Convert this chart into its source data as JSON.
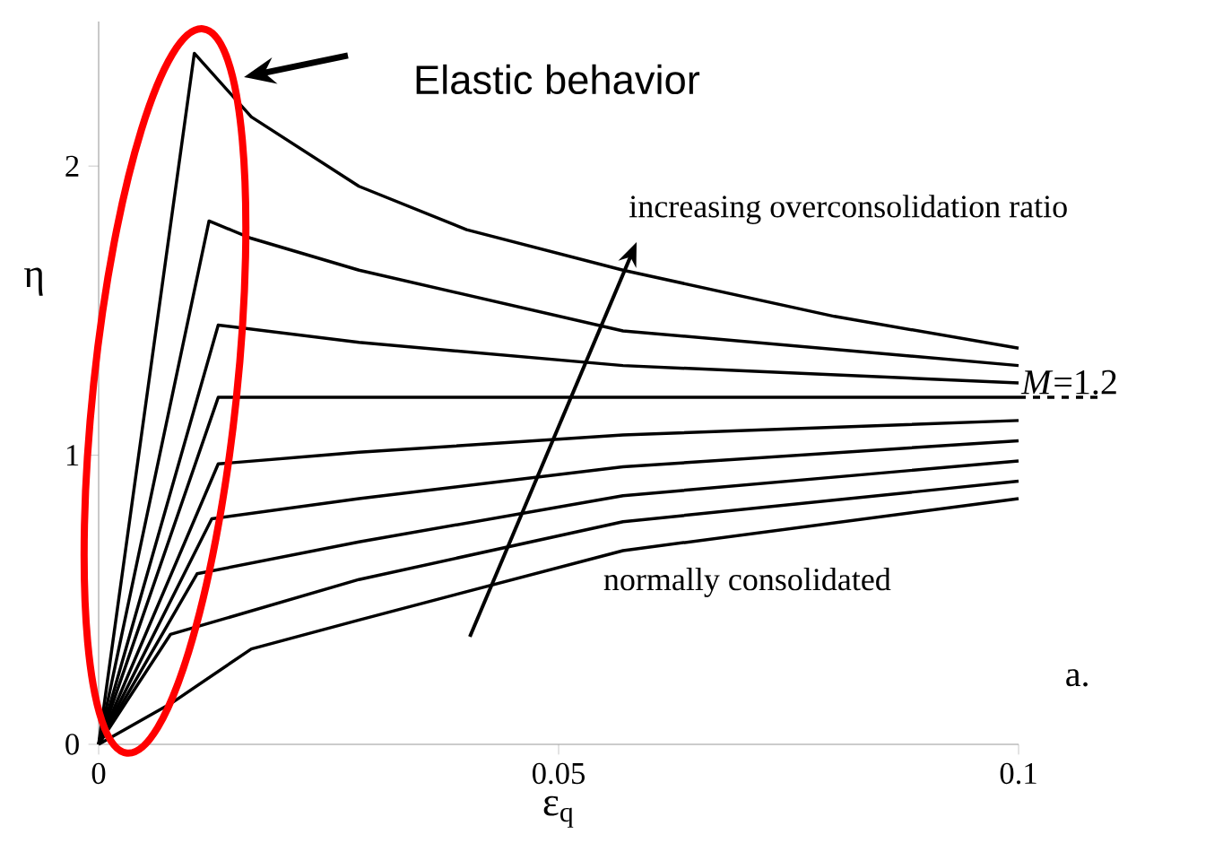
{
  "chart_data": {
    "type": "line",
    "xlabel": "ε$_{q}$",
    "ylabel": "η",
    "xlim": [
      0,
      0.1
    ],
    "ylim": [
      0,
      2.5
    ],
    "xticks": [
      0,
      0.05,
      0.1
    ],
    "yticks": [
      0,
      1,
      2
    ],
    "marker": "none",
    "line_style": "solid",
    "series": [
      {
        "color": "#000000",
        "x": [
          0,
          0.0104,
          0.0166,
          0.0283,
          0.04,
          0.057,
          0.08,
          0.1
        ],
        "values": [
          0,
          2.39,
          2.17,
          1.93,
          1.78,
          1.64,
          1.48,
          1.37
        ]
      },
      {
        "color": "#000000",
        "x": [
          0,
          0.012,
          0.0166,
          0.0283,
          0.057,
          0.1
        ],
        "values": [
          0,
          1.81,
          1.75,
          1.64,
          1.43,
          1.31
        ]
      },
      {
        "color": "#000000",
        "x": [
          0,
          0.013,
          0.0283,
          0.057,
          0.1
        ],
        "values": [
          0,
          1.45,
          1.39,
          1.31,
          1.25
        ]
      },
      {
        "color": "#000000",
        "x": [
          0,
          0.013,
          0.1
        ],
        "values": [
          0,
          1.2,
          1.2
        ]
      },
      {
        "color": "#000000",
        "x": [
          0,
          0.013,
          0.0283,
          0.057,
          0.1
        ],
        "values": [
          0,
          0.97,
          1.01,
          1.07,
          1.12
        ]
      },
      {
        "color": "#000000",
        "x": [
          0,
          0.0123,
          0.0283,
          0.057,
          0.1
        ],
        "values": [
          0,
          0.78,
          0.85,
          0.96,
          1.05
        ]
      },
      {
        "color": "#000000",
        "x": [
          0,
          0.0107,
          0.0283,
          0.057,
          0.1
        ],
        "values": [
          0,
          0.59,
          0.7,
          0.86,
          0.98
        ]
      },
      {
        "color": "#000000",
        "x": [
          0,
          0.0078,
          0.0283,
          0.057,
          0.1
        ],
        "values": [
          0,
          0.38,
          0.57,
          0.77,
          0.91
        ]
      },
      {
        "color": "#000000",
        "x": [
          0,
          0.0078,
          0.0166,
          0.0283,
          0.057,
          0.1
        ],
        "values": [
          0,
          0.14,
          0.33,
          0.43,
          0.67,
          0.85
        ]
      }
    ],
    "ref_lines": [
      {
        "axis": "y",
        "value": 1.2,
        "label": "*M*=1.2",
        "line_style": "dashed",
        "color": "#000000"
      }
    ],
    "annotations": [
      "Elastic behavior",
      "increasing overconsolidation ratio",
      "normally consolidated",
      "a."
    ]
  }
}
